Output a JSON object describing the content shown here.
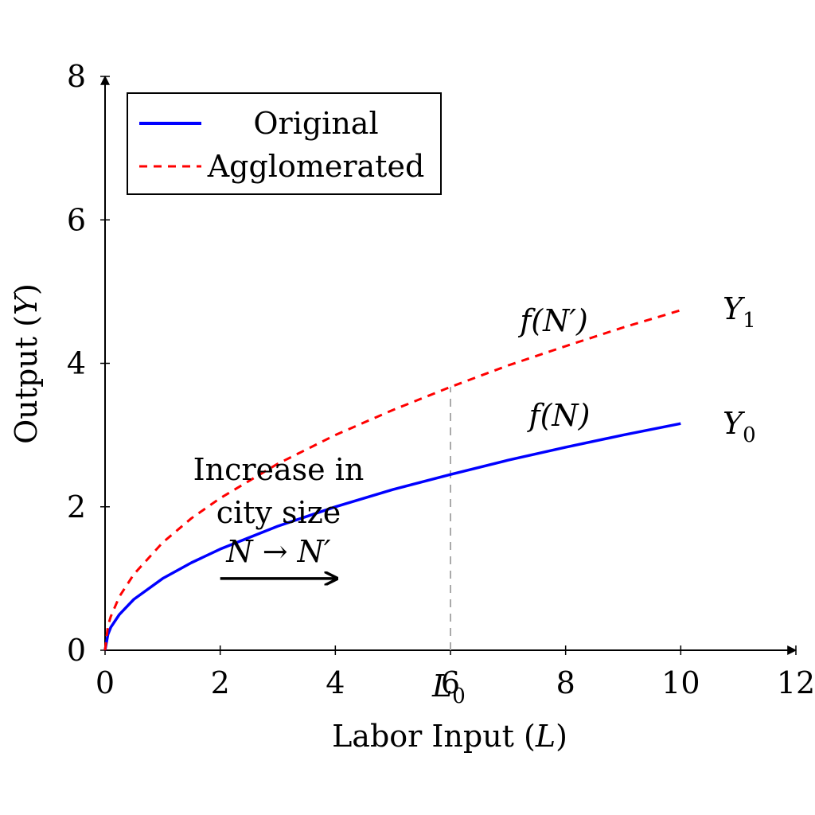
{
  "chart_data": {
    "type": "line",
    "title": "",
    "xlabel": "Labor Input (L)",
    "ylabel": "Output (Y)",
    "xlim": [
      0,
      12
    ],
    "ylim": [
      0,
      8
    ],
    "x_ticks": [
      "0",
      "2",
      "4",
      "6",
      "8",
      "10",
      "12"
    ],
    "y_ticks": [
      "0",
      "2",
      "4",
      "6",
      "8"
    ],
    "grid": false,
    "legend_position": "top-left",
    "series": [
      {
        "name": "Original",
        "color": "#0000ff",
        "style": "solid",
        "x": [
          0,
          0.05,
          0.1,
          0.25,
          0.5,
          1,
          1.5,
          2,
          3,
          4,
          5,
          6,
          7,
          8,
          9,
          10
        ],
        "y": [
          0,
          0.22,
          0.32,
          0.5,
          0.71,
          1.0,
          1.22,
          1.41,
          1.73,
          2.0,
          2.24,
          2.45,
          2.65,
          2.83,
          3.0,
          3.16
        ]
      },
      {
        "name": "Agglomerated",
        "color": "#ff0000",
        "style": "dashed",
        "x": [
          0,
          0.05,
          0.1,
          0.25,
          0.5,
          1,
          1.5,
          2,
          3,
          4,
          5,
          6,
          7,
          8,
          9,
          10
        ],
        "y": [
          0,
          0.34,
          0.47,
          0.75,
          1.06,
          1.5,
          1.84,
          2.12,
          2.6,
          3.0,
          3.35,
          3.67,
          3.97,
          4.24,
          4.5,
          4.74
        ]
      }
    ],
    "annotations": {
      "curve_original": "f(N)",
      "curve_agglomerated": "f(N′)",
      "level_original": "Y",
      "level_original_sub": "0",
      "level_agglomerated": "Y",
      "level_agglomerated_sub": "1",
      "labor_marker": "L",
      "labor_marker_sub": "0",
      "labor_marker_x": 6,
      "shift_line1": "Increase in",
      "shift_line2": "city size",
      "shift_line3": "N → N′",
      "shift_arrow": {
        "x_from": 2,
        "x_to": 4,
        "y": 1
      }
    }
  }
}
